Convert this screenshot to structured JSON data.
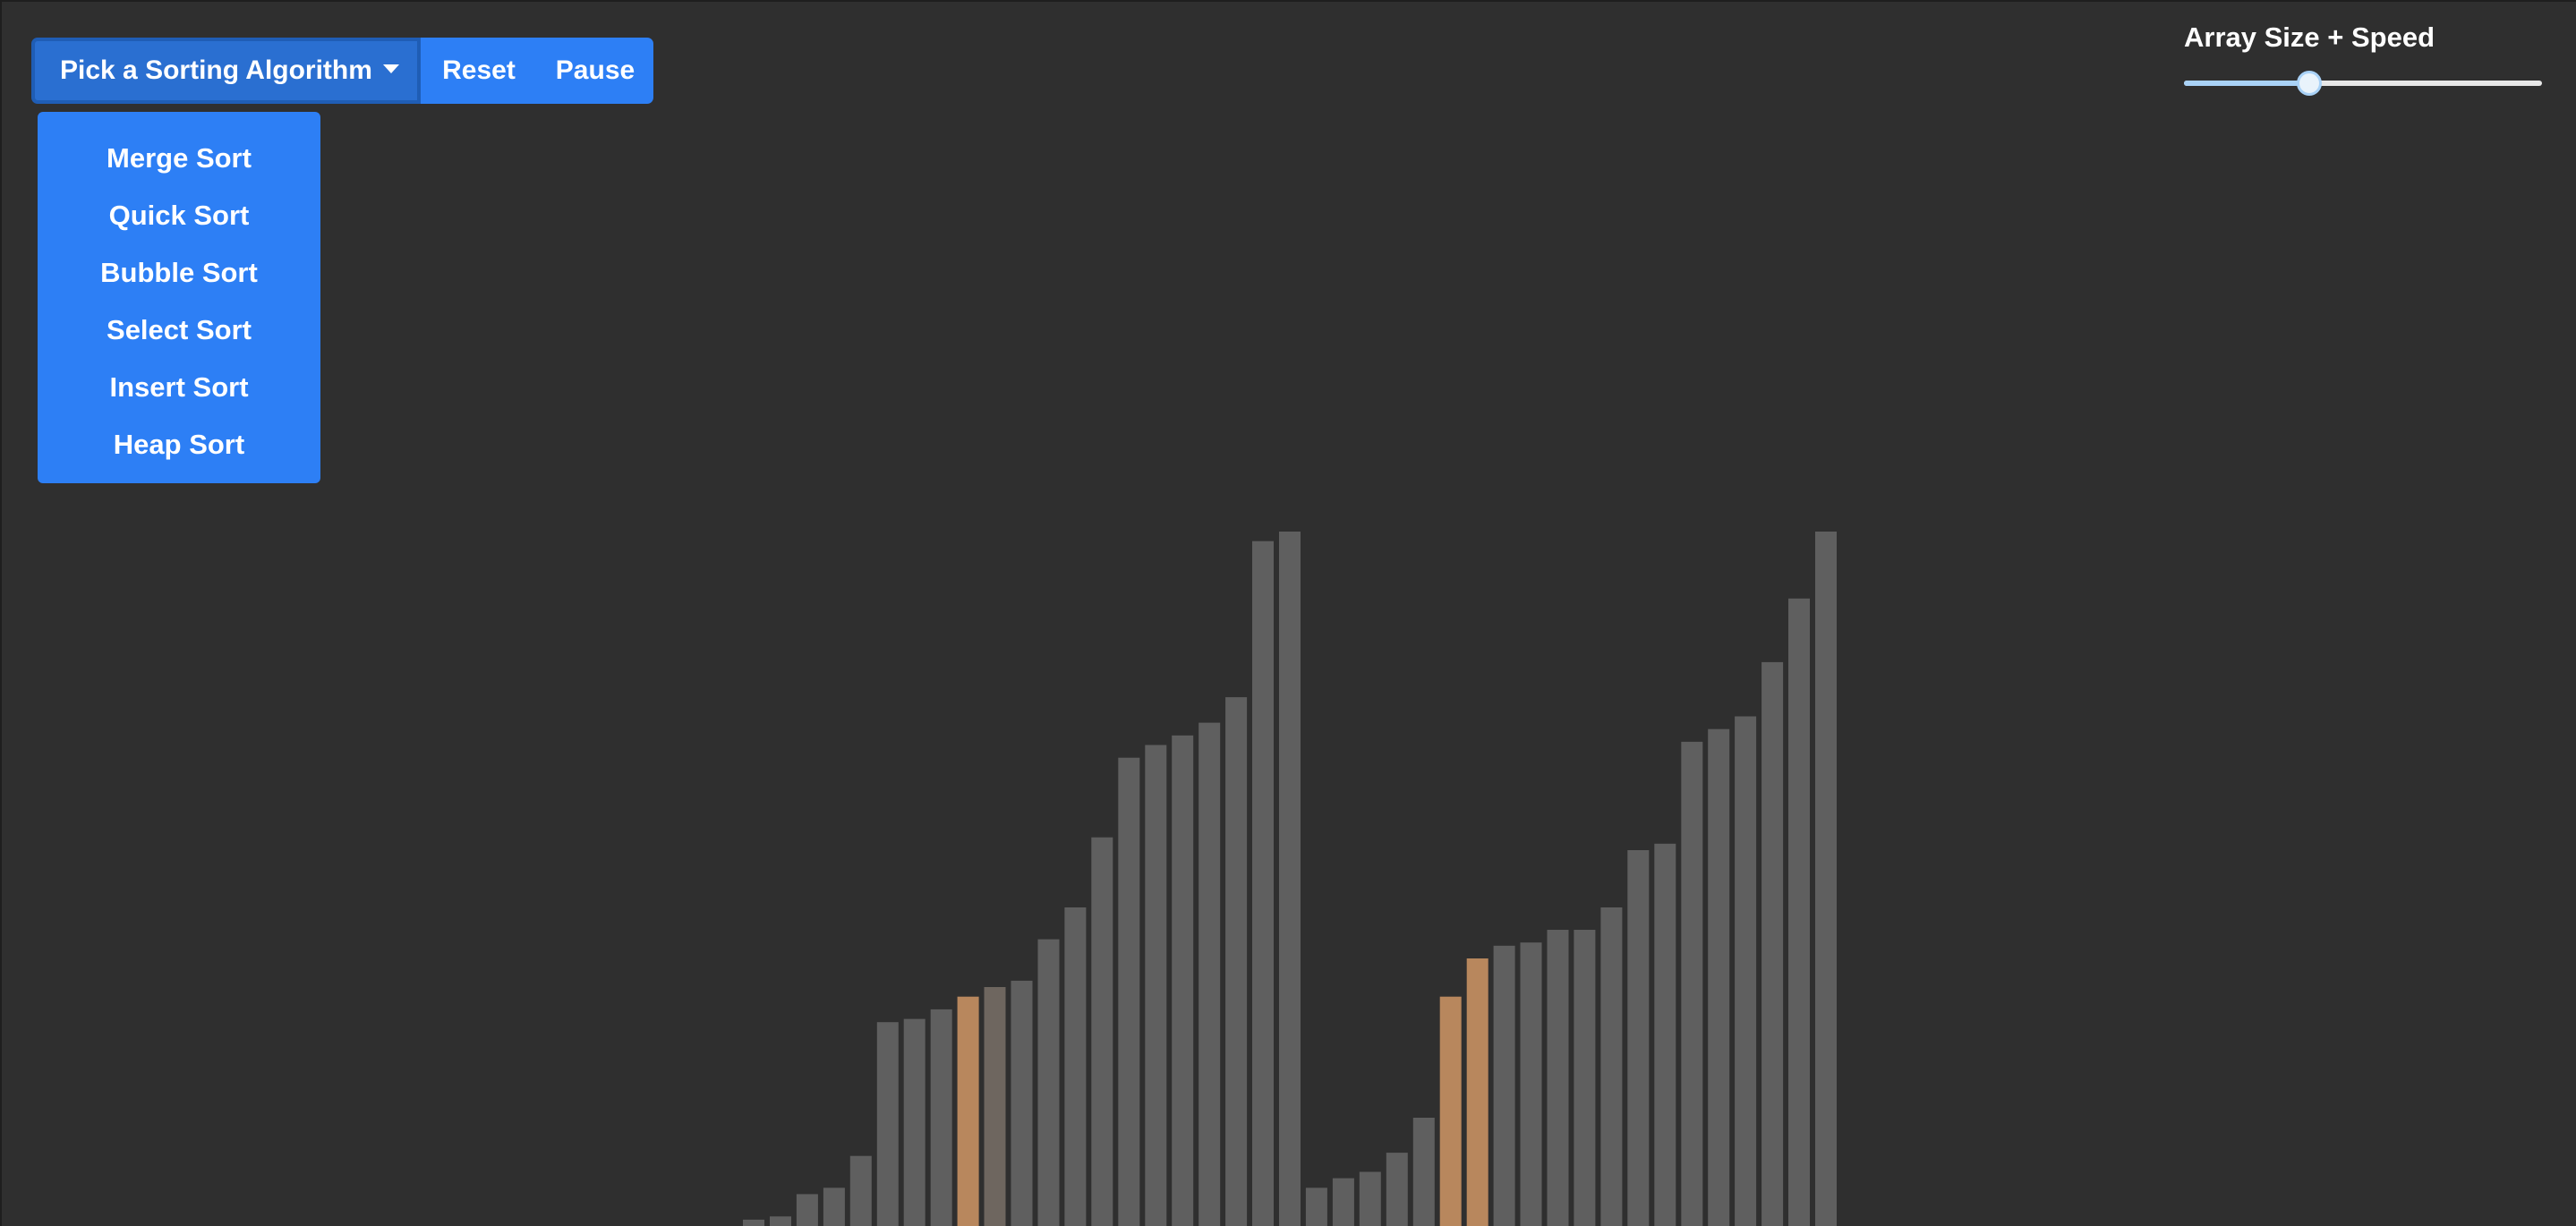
{
  "toolbar": {
    "algorithm_button_label": "Pick a Sorting Algorithm",
    "reset_label": "Reset",
    "pause_label": "Pause"
  },
  "dropdown": {
    "items": [
      {
        "label": "Merge Sort"
      },
      {
        "label": "Quick Sort"
      },
      {
        "label": "Bubble Sort"
      },
      {
        "label": "Select Sort"
      },
      {
        "label": "Insert Sort"
      },
      {
        "label": "Heap Sort"
      }
    ]
  },
  "slider": {
    "label": "Array Size + Speed",
    "value_fraction": 0.35
  },
  "colors": {
    "background": "#2f2f2f",
    "bar_default": "#5f5f5f",
    "bar_compare": "#b8875d",
    "bar_dim": "#6e665f",
    "button": "#2d7ff5"
  },
  "chart_data": {
    "type": "bar",
    "values": [
      2,
      3,
      10,
      12,
      22,
      64,
      65,
      68,
      72,
      75,
      77,
      90,
      100,
      122,
      147,
      151,
      154,
      158,
      166,
      215,
      218,
      12,
      15,
      17,
      23,
      34,
      72,
      84,
      88,
      89,
      93,
      93,
      100,
      118,
      120,
      152,
      156,
      160,
      177,
      197,
      218
    ],
    "highlighted_indices": [
      8,
      26,
      27
    ],
    "dim_indices": [
      9
    ]
  }
}
